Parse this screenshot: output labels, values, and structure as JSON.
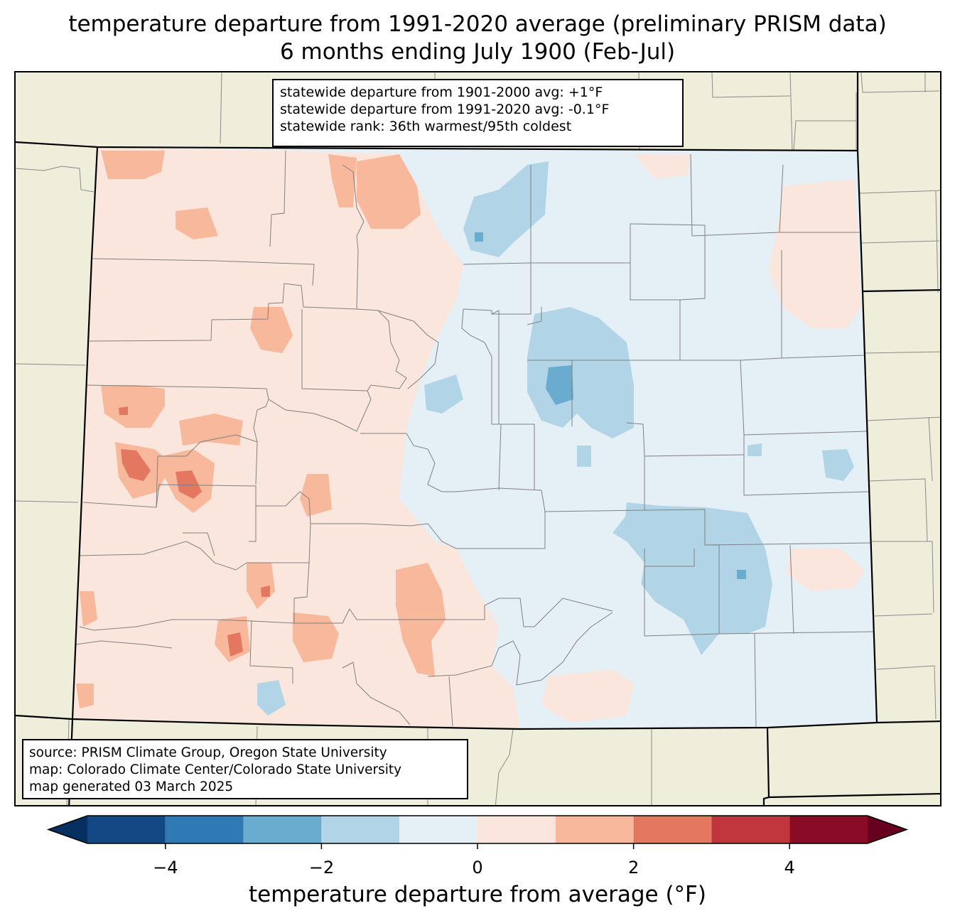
{
  "title": {
    "line1": "temperature departure from 1991-2020 average (preliminary PRISM data)",
    "line2": "6 months ending July 1900 (Feb-Jul)"
  },
  "stats_box": {
    "line1": "statewide departure from 1901-2000 avg: +1°F",
    "line2": "statewide departure from 1991-2020 avg: -0.1°F",
    "line3": "statewide rank: 36th warmest/95th coldest"
  },
  "source_box": {
    "line1": "source: PRISM Climate Group, Oregon State University",
    "line2": "map: Colorado Climate Center/Colorado State University",
    "line3": "map generated 03 March 2025"
  },
  "colorbar": {
    "label": "temperature departure from average (°F)",
    "range": [
      -5,
      5
    ],
    "step": 1,
    "ticks": [
      {
        "value": -4,
        "label": "−4"
      },
      {
        "value": -2,
        "label": "−2"
      },
      {
        "value": 0,
        "label": "0"
      },
      {
        "value": 2,
        "label": "2"
      },
      {
        "value": 4,
        "label": "4"
      }
    ],
    "colors": [
      "#124984",
      "#2f79b5",
      "#6aacd0",
      "#b1d5e7",
      "#e5eff6",
      "#fae6dc",
      "#f7b89c",
      "#e3775f",
      "#c0363c",
      "#8a0b25"
    ],
    "under_color": "#053061",
    "over_color": "#67001f"
  },
  "map": {
    "land_color": "#efeedb",
    "state_fill": "#e5eff6"
  }
}
